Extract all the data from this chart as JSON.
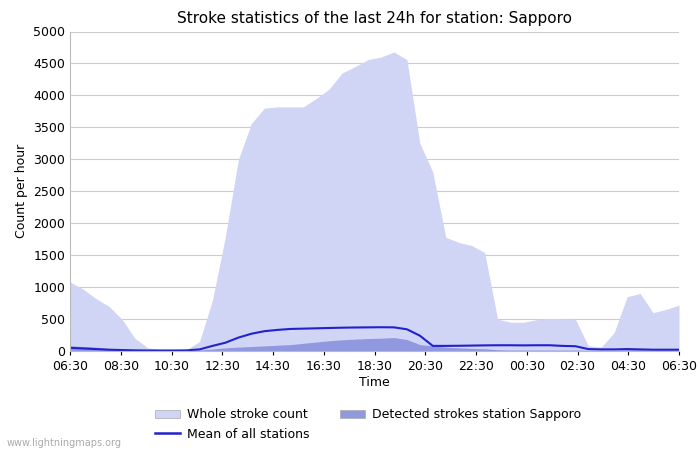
{
  "title": "Stroke statistics of the last 24h for station: Sapporo",
  "xlabel": "Time",
  "ylabel": "Count per hour",
  "watermark": "www.lightningmaps.org",
  "x_ticks": [
    "06:30",
    "08:30",
    "10:30",
    "12:30",
    "14:30",
    "16:30",
    "18:30",
    "20:30",
    "22:30",
    "00:30",
    "02:30",
    "04:30",
    "06:30"
  ],
  "ylim": [
    0,
    5000
  ],
  "yticks": [
    0,
    500,
    1000,
    1500,
    2000,
    2500,
    3000,
    3500,
    4000,
    4500,
    5000
  ],
  "whole_stroke": [
    1080,
    970,
    820,
    700,
    500,
    200,
    50,
    20,
    10,
    20,
    150,
    800,
    1800,
    3000,
    3560,
    3800,
    3820,
    3820,
    3820,
    3950,
    4100,
    4350,
    4450,
    4560,
    4600,
    4680,
    4560,
    3250,
    2800,
    1780,
    1700,
    1650,
    1540,
    500,
    450,
    450,
    490,
    510,
    500,
    500,
    80,
    60,
    290,
    850,
    900,
    600,
    650,
    720
  ],
  "detected_sapporo": [
    80,
    70,
    60,
    40,
    30,
    20,
    10,
    10,
    10,
    10,
    15,
    30,
    50,
    60,
    70,
    80,
    90,
    100,
    120,
    140,
    160,
    175,
    185,
    195,
    200,
    210,
    180,
    100,
    80,
    60,
    50,
    40,
    35,
    20,
    15,
    15,
    15,
    15,
    15,
    15,
    10,
    10,
    10,
    20,
    20,
    10,
    10,
    10
  ],
  "mean_all": [
    50,
    40,
    30,
    20,
    15,
    10,
    8,
    8,
    8,
    10,
    25,
    80,
    130,
    210,
    270,
    310,
    330,
    345,
    350,
    355,
    360,
    365,
    368,
    370,
    372,
    370,
    340,
    240,
    80,
    80,
    82,
    85,
    88,
    90,
    90,
    88,
    90,
    90,
    80,
    75,
    30,
    25,
    25,
    30,
    25,
    20,
    20,
    20
  ],
  "fill_color_whole": "#d0d4f5",
  "fill_color_detected": "#9098e0",
  "line_color_mean": "#2222cc",
  "bg_color": "#ffffff",
  "grid_color": "#cccccc",
  "title_fontsize": 11,
  "axis_fontsize": 9,
  "legend_fontsize": 9
}
